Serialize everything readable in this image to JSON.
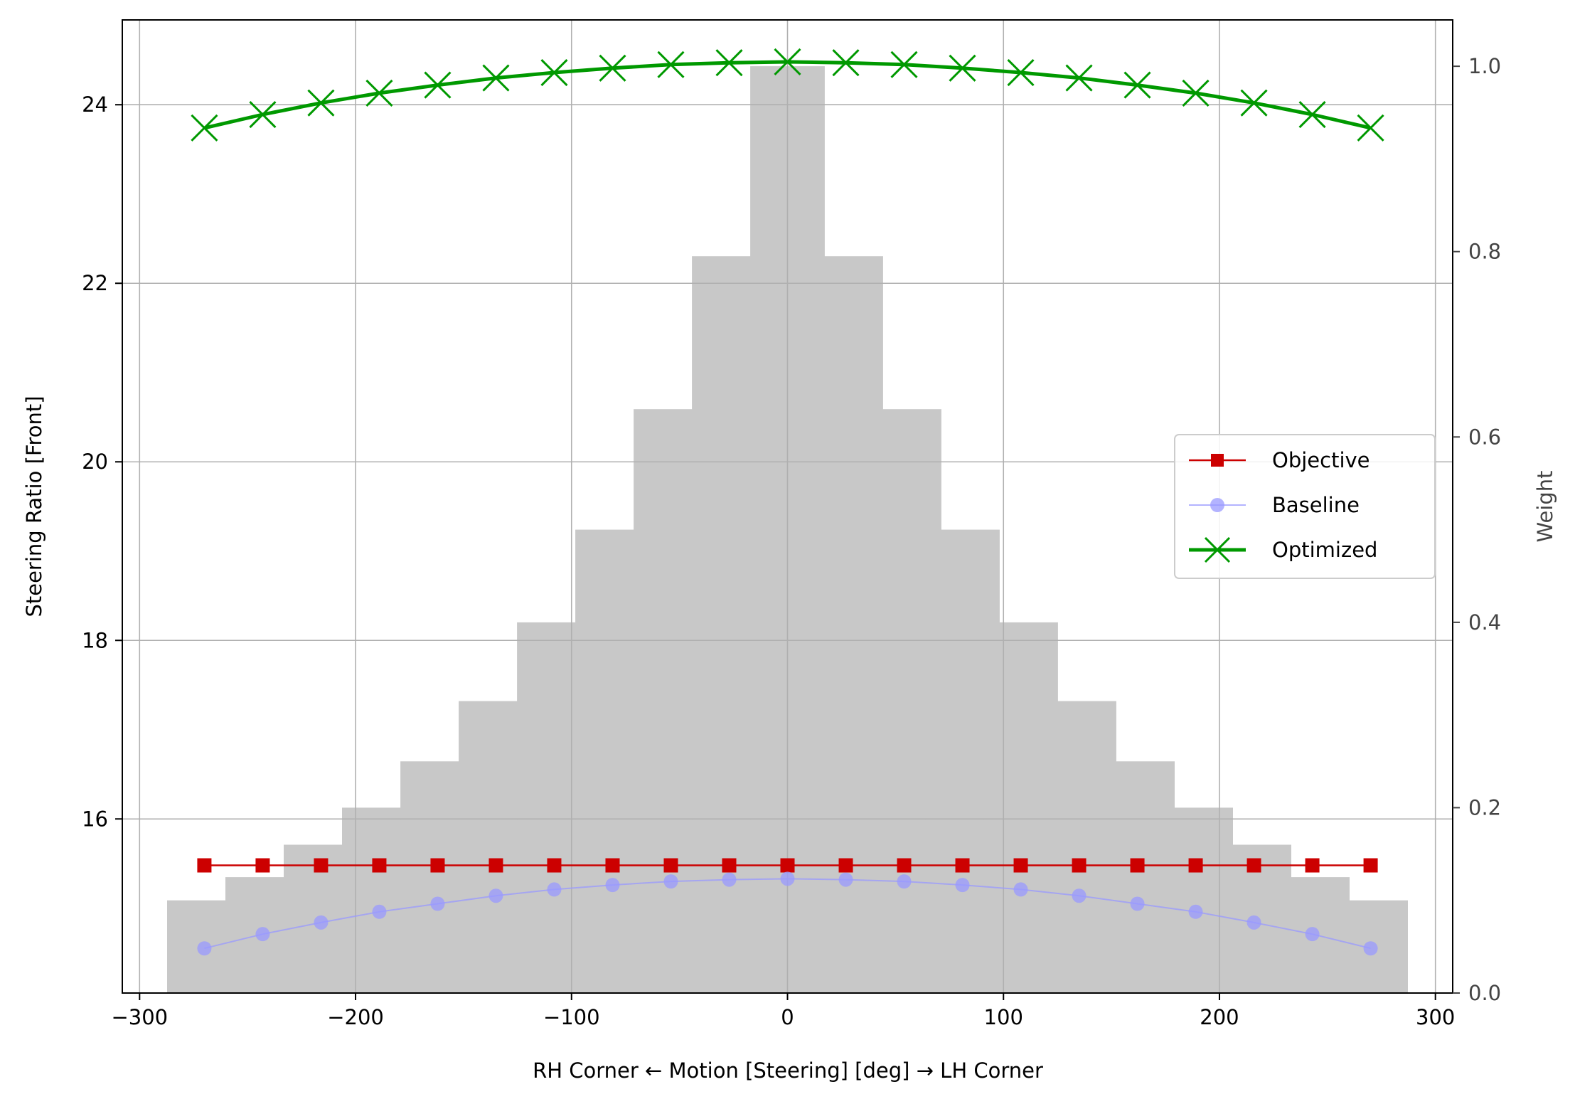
{
  "chart_data": {
    "type": "line",
    "xlabel": "RH Corner ← Motion [Steering] [deg] → LH Corner",
    "ylabel": "Steering Ratio [Front]",
    "ylabel_right": "Weight",
    "xlim": [
      -308,
      308
    ],
    "ylim": [
      14.05,
      24.95
    ],
    "ylim_right": [
      0,
      1.05
    ],
    "x_ticks": [
      -300,
      -200,
      -100,
      0,
      100,
      200,
      300
    ],
    "x_tick_labels": [
      "−300",
      "−200",
      "−100",
      "0",
      "100",
      "200",
      "300"
    ],
    "y_ticks": [
      16,
      18,
      20,
      22,
      24
    ],
    "y_tick_labels": [
      "16",
      "18",
      "20",
      "22",
      "24"
    ],
    "y_right_ticks": [
      0,
      0.2,
      0.4,
      0.6,
      0.8,
      1.0
    ],
    "y_right_tick_labels": [
      "0.0",
      "0.2",
      "0.4",
      "0.6",
      "0.8",
      "1.0"
    ],
    "grid": true,
    "legend_position": "center-right",
    "x": [
      -270,
      -243,
      -216,
      -189,
      -162,
      -135,
      -108,
      -81,
      -54,
      -27,
      0,
      27,
      54,
      81,
      108,
      135,
      162,
      189,
      216,
      243,
      270
    ],
    "weights": {
      "name": "Weight",
      "color": "#c8c8c8",
      "bar_width": 23,
      "values": [
        0.1,
        0.125,
        0.16,
        0.2,
        0.25,
        0.315,
        0.4,
        0.5,
        0.63,
        0.795,
        1.0,
        0.795,
        0.63,
        0.5,
        0.4,
        0.315,
        0.25,
        0.2,
        0.16,
        0.125,
        0.1
      ]
    },
    "series": [
      {
        "name": "Objective",
        "color": "#cc0000",
        "marker": "square",
        "values": [
          15.48,
          15.48,
          15.48,
          15.48,
          15.48,
          15.48,
          15.48,
          15.48,
          15.48,
          15.48,
          15.48,
          15.48,
          15.48,
          15.48,
          15.48,
          15.48,
          15.48,
          15.48,
          15.48,
          15.48,
          15.48
        ]
      },
      {
        "name": "Baseline",
        "color": "#9999ff",
        "marker": "circle",
        "values": [
          14.55,
          14.71,
          14.84,
          14.96,
          15.05,
          15.14,
          15.21,
          15.26,
          15.3,
          15.32,
          15.33,
          15.32,
          15.3,
          15.26,
          15.21,
          15.14,
          15.05,
          14.96,
          14.84,
          14.71,
          14.55
        ]
      },
      {
        "name": "Optimized",
        "color": "#009900",
        "marker": "x",
        "values": [
          23.74,
          23.89,
          24.02,
          24.13,
          24.22,
          24.3,
          24.36,
          24.41,
          24.45,
          24.47,
          24.48,
          24.47,
          24.45,
          24.41,
          24.36,
          24.3,
          24.22,
          24.13,
          24.02,
          23.89,
          23.74
        ]
      }
    ]
  }
}
